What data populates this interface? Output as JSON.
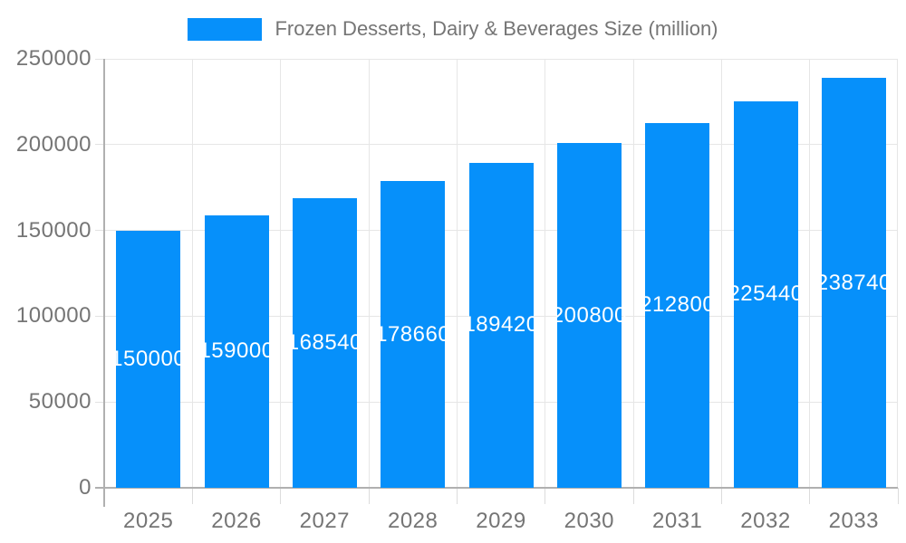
{
  "chart_data": {
    "type": "bar",
    "series_name": "Frozen Desserts, Dairy & Beverages Size (million)",
    "categories": [
      "2025",
      "2026",
      "2027",
      "2028",
      "2029",
      "2030",
      "2031",
      "2032",
      "2033"
    ],
    "values": [
      150000,
      159000,
      168540,
      178660,
      189420,
      200800,
      212800,
      225440,
      238740
    ],
    "value_labels": [
      "150000",
      "159000",
      "168540",
      "178660",
      "189420",
      "200800",
      "212800",
      "225440",
      "238740"
    ],
    "y_ticks": [
      0,
      50000,
      100000,
      150000,
      200000,
      250000
    ],
    "y_tick_labels": [
      "0",
      "50000",
      "100000",
      "150000",
      "200000",
      "250000"
    ],
    "ylim": [
      0,
      250000
    ],
    "grid": true,
    "legend_position": "top-center",
    "bar_color": "#0690fa",
    "value_label_color": "#ffffff",
    "axis_text_color": "#757575",
    "grid_color": "#e6e6e6",
    "axis_line_color": "#b0b0b0",
    "xlabel": "",
    "ylabel": ""
  }
}
